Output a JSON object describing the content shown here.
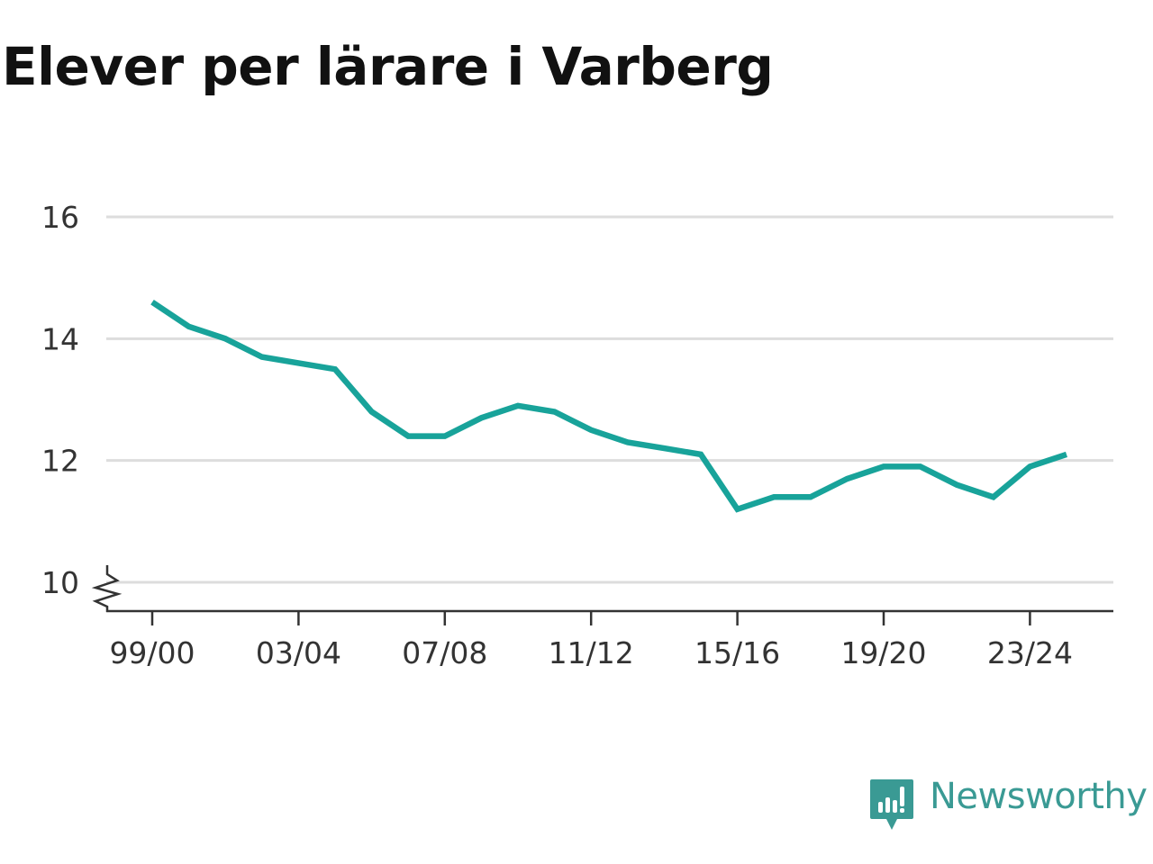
{
  "title": "Elever per lärare i Varberg",
  "brand": {
    "name": "Newsworthy",
    "icon": "newsworthy-logo-icon"
  },
  "colors": {
    "line": "#18a39a",
    "grid": "#dddddd",
    "axis": "#333333",
    "title": "#111111",
    "brand": "#3a9a94"
  },
  "chart_data": {
    "type": "line",
    "title": "Elever per lärare i Varberg",
    "xlabel": "",
    "ylabel": "",
    "x": [
      "99/00",
      "00/01",
      "01/02",
      "02/03",
      "03/04",
      "04/05",
      "05/06",
      "06/07",
      "07/08",
      "08/09",
      "09/10",
      "10/11",
      "11/12",
      "12/13",
      "13/14",
      "14/15",
      "15/16",
      "16/17",
      "17/18",
      "18/19",
      "19/20",
      "20/21",
      "21/22",
      "22/23",
      "23/24",
      "24/25"
    ],
    "series": [
      {
        "values": [
          14.6,
          14.2,
          14.0,
          13.7,
          13.6,
          13.5,
          12.8,
          12.4,
          12.4,
          12.7,
          12.9,
          12.8,
          12.5,
          12.3,
          12.2,
          12.1,
          11.2,
          11.4,
          11.4,
          11.7,
          11.9,
          11.9,
          11.6,
          11.4,
          11.9,
          12.1
        ]
      }
    ],
    "x_tick_labels": [
      "99/00",
      "03/04",
      "07/08",
      "11/12",
      "15/16",
      "19/20",
      "23/24"
    ],
    "y_ticks": [
      10,
      12,
      14,
      16
    ],
    "ylim": [
      10,
      16
    ],
    "y_axis_break": true,
    "grid": true,
    "legend": "none"
  }
}
